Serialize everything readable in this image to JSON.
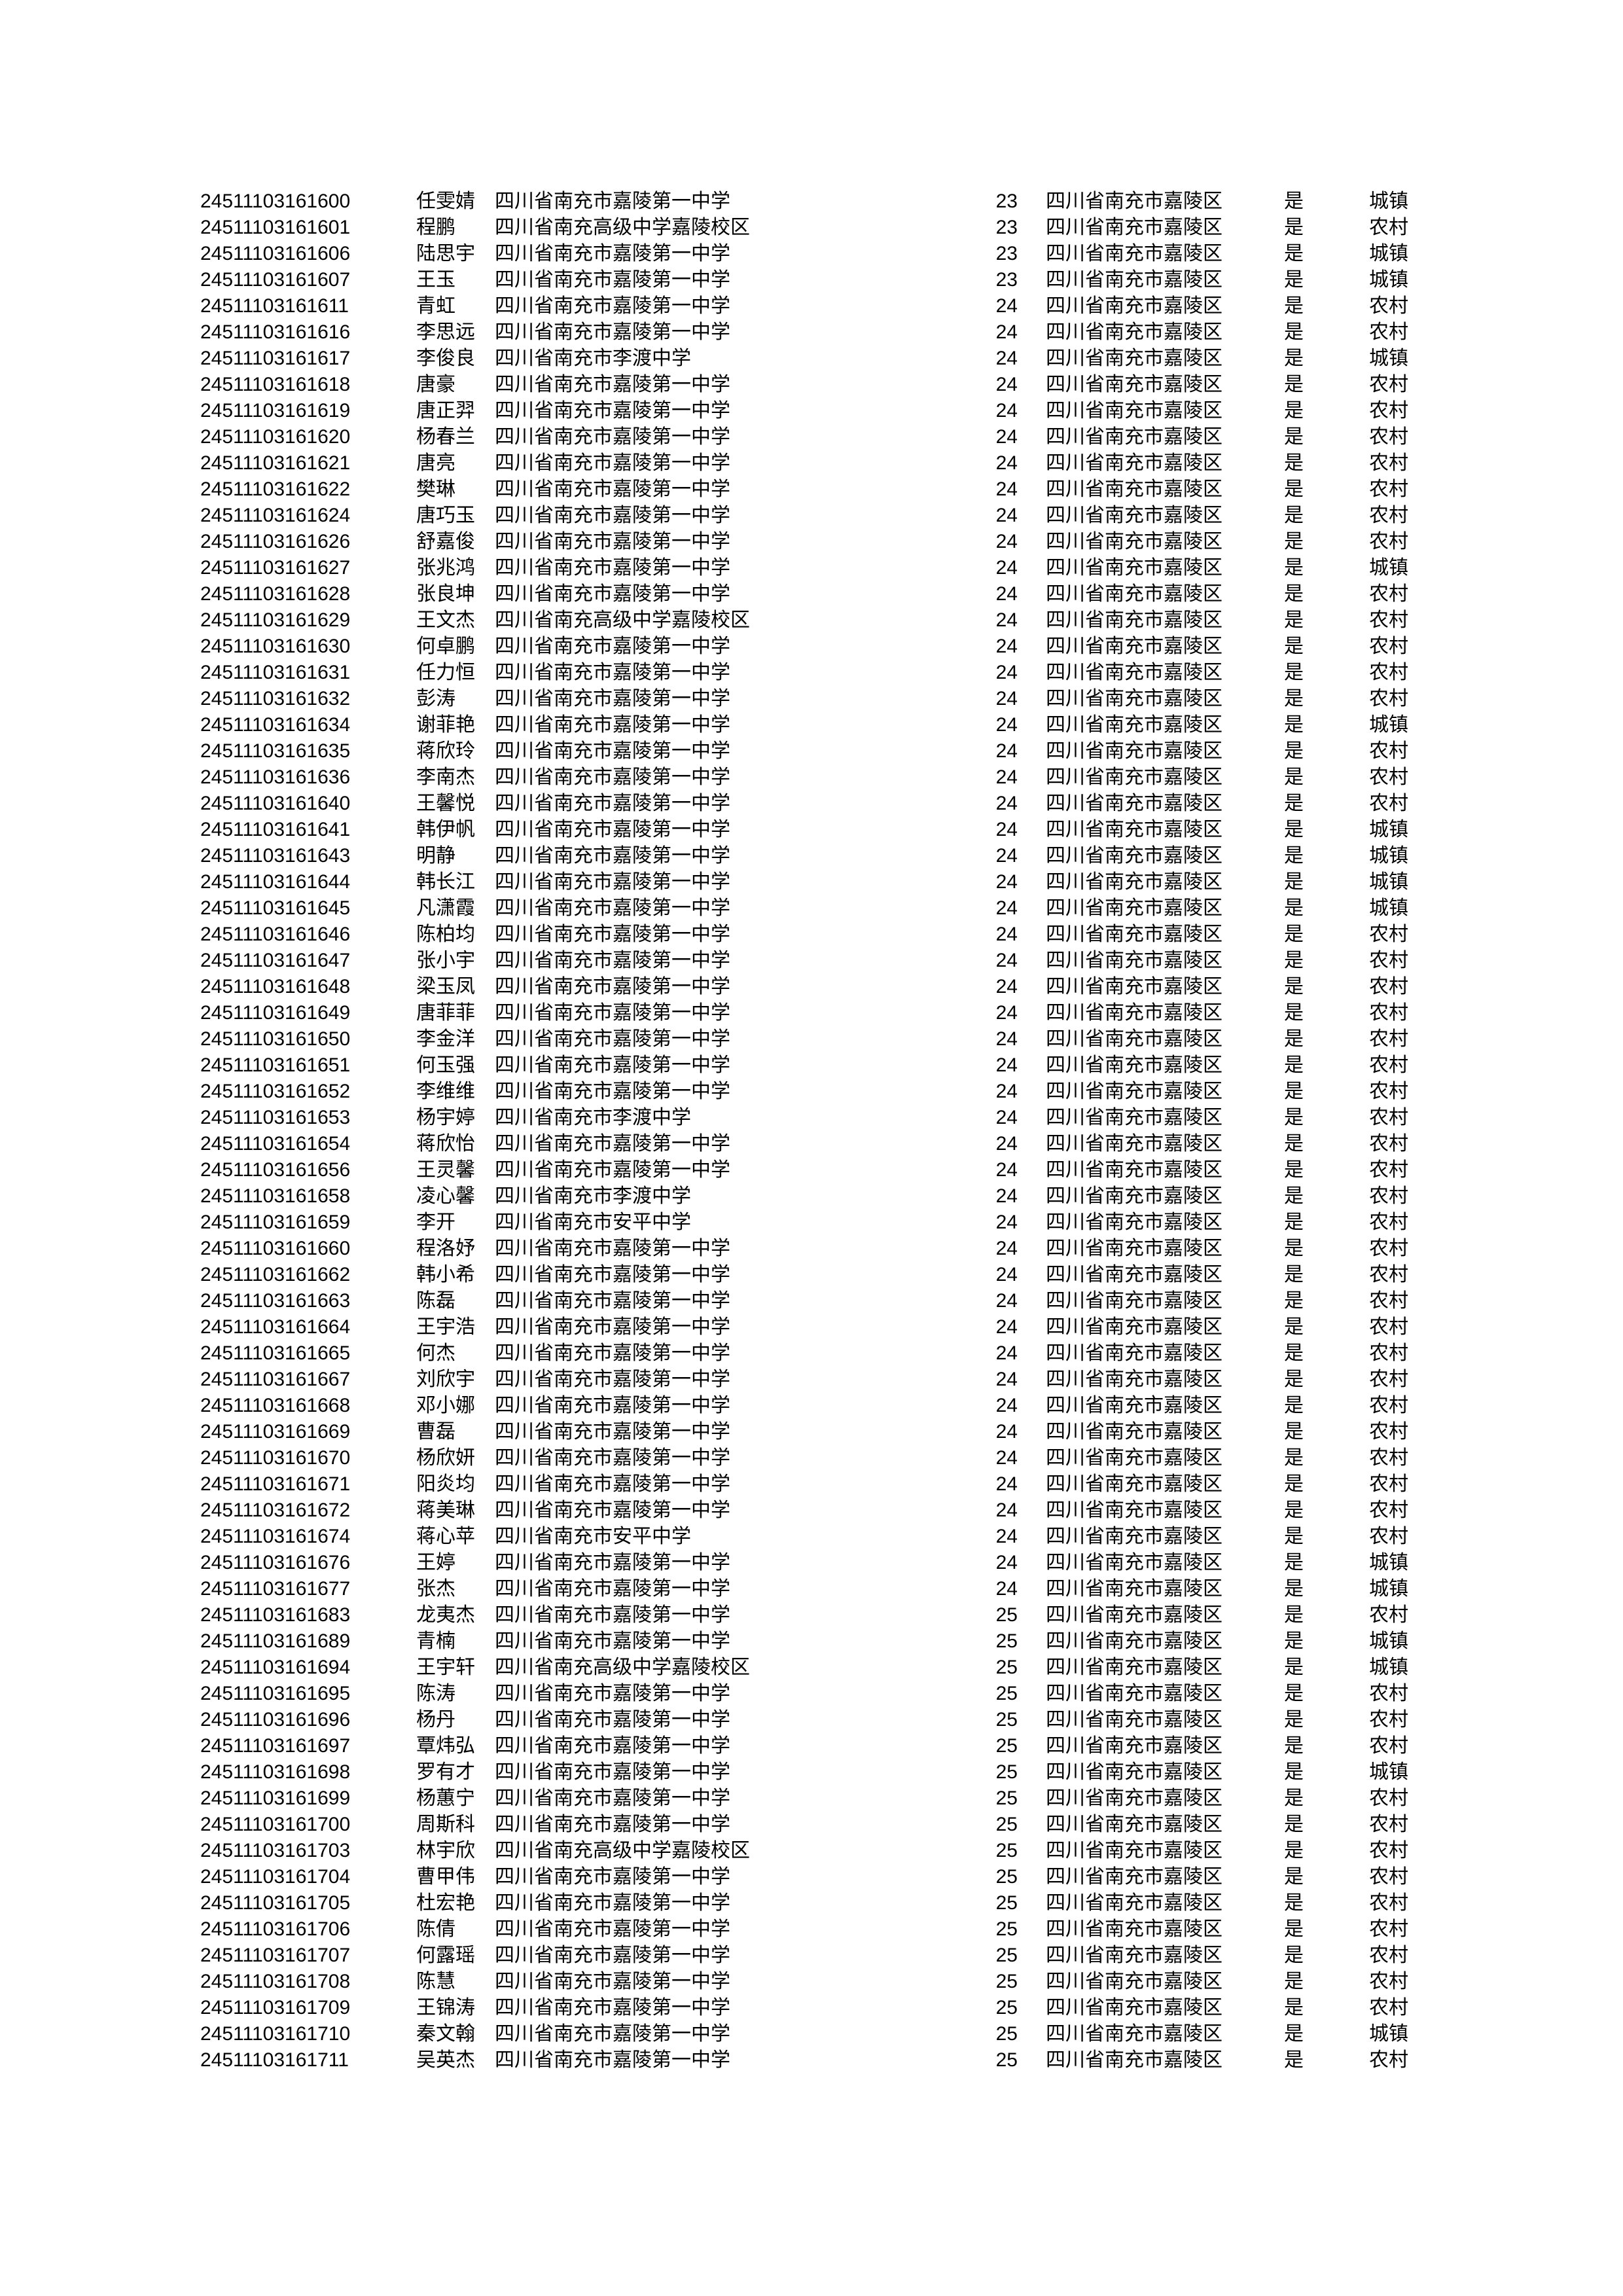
{
  "table": {
    "column_keys": [
      "id",
      "name",
      "school",
      "num",
      "district",
      "flag",
      "residence"
    ],
    "cell_names": [
      "candidate-id",
      "student-name",
      "school-name",
      "number-value",
      "district-name",
      "yes-flag",
      "residence-type"
    ],
    "rows": [
      [
        "24511103161600",
        "任雯婧",
        "四川省南充市嘉陵第一中学",
        "23",
        "四川省南充市嘉陵区",
        "是",
        "城镇"
      ],
      [
        "24511103161601",
        "程鹏",
        "四川省南充高级中学嘉陵校区",
        "23",
        "四川省南充市嘉陵区",
        "是",
        "农村"
      ],
      [
        "24511103161606",
        "陆思宇",
        "四川省南充市嘉陵第一中学",
        "23",
        "四川省南充市嘉陵区",
        "是",
        "城镇"
      ],
      [
        "24511103161607",
        "王玉",
        "四川省南充市嘉陵第一中学",
        "23",
        "四川省南充市嘉陵区",
        "是",
        "城镇"
      ],
      [
        "24511103161611",
        "青虹",
        "四川省南充市嘉陵第一中学",
        "24",
        "四川省南充市嘉陵区",
        "是",
        "农村"
      ],
      [
        "24511103161616",
        "李思远",
        "四川省南充市嘉陵第一中学",
        "24",
        "四川省南充市嘉陵区",
        "是",
        "农村"
      ],
      [
        "24511103161617",
        "李俊良",
        "四川省南充市李渡中学",
        "24",
        "四川省南充市嘉陵区",
        "是",
        "城镇"
      ],
      [
        "24511103161618",
        "唐豪",
        "四川省南充市嘉陵第一中学",
        "24",
        "四川省南充市嘉陵区",
        "是",
        "农村"
      ],
      [
        "24511103161619",
        "唐正羿",
        "四川省南充市嘉陵第一中学",
        "24",
        "四川省南充市嘉陵区",
        "是",
        "农村"
      ],
      [
        "24511103161620",
        "杨春兰",
        "四川省南充市嘉陵第一中学",
        "24",
        "四川省南充市嘉陵区",
        "是",
        "农村"
      ],
      [
        "24511103161621",
        "唐亮",
        "四川省南充市嘉陵第一中学",
        "24",
        "四川省南充市嘉陵区",
        "是",
        "农村"
      ],
      [
        "24511103161622",
        "樊琳",
        "四川省南充市嘉陵第一中学",
        "24",
        "四川省南充市嘉陵区",
        "是",
        "农村"
      ],
      [
        "24511103161624",
        "唐巧玉",
        "四川省南充市嘉陵第一中学",
        "24",
        "四川省南充市嘉陵区",
        "是",
        "农村"
      ],
      [
        "24511103161626",
        "舒嘉俊",
        "四川省南充市嘉陵第一中学",
        "24",
        "四川省南充市嘉陵区",
        "是",
        "农村"
      ],
      [
        "24511103161627",
        "张兆鸿",
        "四川省南充市嘉陵第一中学",
        "24",
        "四川省南充市嘉陵区",
        "是",
        "城镇"
      ],
      [
        "24511103161628",
        "张良坤",
        "四川省南充市嘉陵第一中学",
        "24",
        "四川省南充市嘉陵区",
        "是",
        "农村"
      ],
      [
        "24511103161629",
        "王文杰",
        "四川省南充高级中学嘉陵校区",
        "24",
        "四川省南充市嘉陵区",
        "是",
        "农村"
      ],
      [
        "24511103161630",
        "何卓鹏",
        "四川省南充市嘉陵第一中学",
        "24",
        "四川省南充市嘉陵区",
        "是",
        "农村"
      ],
      [
        "24511103161631",
        "任力恒",
        "四川省南充市嘉陵第一中学",
        "24",
        "四川省南充市嘉陵区",
        "是",
        "农村"
      ],
      [
        "24511103161632",
        "彭涛",
        "四川省南充市嘉陵第一中学",
        "24",
        "四川省南充市嘉陵区",
        "是",
        "农村"
      ],
      [
        "24511103161634",
        "谢菲艳",
        "四川省南充市嘉陵第一中学",
        "24",
        "四川省南充市嘉陵区",
        "是",
        "城镇"
      ],
      [
        "24511103161635",
        "蒋欣玲",
        "四川省南充市嘉陵第一中学",
        "24",
        "四川省南充市嘉陵区",
        "是",
        "农村"
      ],
      [
        "24511103161636",
        "李南杰",
        "四川省南充市嘉陵第一中学",
        "24",
        "四川省南充市嘉陵区",
        "是",
        "农村"
      ],
      [
        "24511103161640",
        "王馨悦",
        "四川省南充市嘉陵第一中学",
        "24",
        "四川省南充市嘉陵区",
        "是",
        "农村"
      ],
      [
        "24511103161641",
        "韩伊帆",
        "四川省南充市嘉陵第一中学",
        "24",
        "四川省南充市嘉陵区",
        "是",
        "城镇"
      ],
      [
        "24511103161643",
        "明静",
        "四川省南充市嘉陵第一中学",
        "24",
        "四川省南充市嘉陵区",
        "是",
        "城镇"
      ],
      [
        "24511103161644",
        "韩长江",
        "四川省南充市嘉陵第一中学",
        "24",
        "四川省南充市嘉陵区",
        "是",
        "城镇"
      ],
      [
        "24511103161645",
        "凡潇霞",
        "四川省南充市嘉陵第一中学",
        "24",
        "四川省南充市嘉陵区",
        "是",
        "城镇"
      ],
      [
        "24511103161646",
        "陈柏均",
        "四川省南充市嘉陵第一中学",
        "24",
        "四川省南充市嘉陵区",
        "是",
        "农村"
      ],
      [
        "24511103161647",
        "张小宇",
        "四川省南充市嘉陵第一中学",
        "24",
        "四川省南充市嘉陵区",
        "是",
        "农村"
      ],
      [
        "24511103161648",
        "梁玉凤",
        "四川省南充市嘉陵第一中学",
        "24",
        "四川省南充市嘉陵区",
        "是",
        "农村"
      ],
      [
        "24511103161649",
        "唐菲菲",
        "四川省南充市嘉陵第一中学",
        "24",
        "四川省南充市嘉陵区",
        "是",
        "农村"
      ],
      [
        "24511103161650",
        "李金洋",
        "四川省南充市嘉陵第一中学",
        "24",
        "四川省南充市嘉陵区",
        "是",
        "农村"
      ],
      [
        "24511103161651",
        "何玉强",
        "四川省南充市嘉陵第一中学",
        "24",
        "四川省南充市嘉陵区",
        "是",
        "农村"
      ],
      [
        "24511103161652",
        "李维维",
        "四川省南充市嘉陵第一中学",
        "24",
        "四川省南充市嘉陵区",
        "是",
        "农村"
      ],
      [
        "24511103161653",
        "杨宇婷",
        "四川省南充市李渡中学",
        "24",
        "四川省南充市嘉陵区",
        "是",
        "农村"
      ],
      [
        "24511103161654",
        "蒋欣怡",
        "四川省南充市嘉陵第一中学",
        "24",
        "四川省南充市嘉陵区",
        "是",
        "农村"
      ],
      [
        "24511103161656",
        "王灵馨",
        "四川省南充市嘉陵第一中学",
        "24",
        "四川省南充市嘉陵区",
        "是",
        "农村"
      ],
      [
        "24511103161658",
        "凌心馨",
        "四川省南充市李渡中学",
        "24",
        "四川省南充市嘉陵区",
        "是",
        "农村"
      ],
      [
        "24511103161659",
        "李开",
        "四川省南充市安平中学",
        "24",
        "四川省南充市嘉陵区",
        "是",
        "农村"
      ],
      [
        "24511103161660",
        "程洛妤",
        "四川省南充市嘉陵第一中学",
        "24",
        "四川省南充市嘉陵区",
        "是",
        "农村"
      ],
      [
        "24511103161662",
        "韩小希",
        "四川省南充市嘉陵第一中学",
        "24",
        "四川省南充市嘉陵区",
        "是",
        "农村"
      ],
      [
        "24511103161663",
        "陈磊",
        "四川省南充市嘉陵第一中学",
        "24",
        "四川省南充市嘉陵区",
        "是",
        "农村"
      ],
      [
        "24511103161664",
        "王宇浩",
        "四川省南充市嘉陵第一中学",
        "24",
        "四川省南充市嘉陵区",
        "是",
        "农村"
      ],
      [
        "24511103161665",
        "何杰",
        "四川省南充市嘉陵第一中学",
        "24",
        "四川省南充市嘉陵区",
        "是",
        "农村"
      ],
      [
        "24511103161667",
        "刘欣宇",
        "四川省南充市嘉陵第一中学",
        "24",
        "四川省南充市嘉陵区",
        "是",
        "农村"
      ],
      [
        "24511103161668",
        "邓小娜",
        "四川省南充市嘉陵第一中学",
        "24",
        "四川省南充市嘉陵区",
        "是",
        "农村"
      ],
      [
        "24511103161669",
        "曹磊",
        "四川省南充市嘉陵第一中学",
        "24",
        "四川省南充市嘉陵区",
        "是",
        "农村"
      ],
      [
        "24511103161670",
        "杨欣妍",
        "四川省南充市嘉陵第一中学",
        "24",
        "四川省南充市嘉陵区",
        "是",
        "农村"
      ],
      [
        "24511103161671",
        "阳炎均",
        "四川省南充市嘉陵第一中学",
        "24",
        "四川省南充市嘉陵区",
        "是",
        "农村"
      ],
      [
        "24511103161672",
        "蒋美琳",
        "四川省南充市嘉陵第一中学",
        "24",
        "四川省南充市嘉陵区",
        "是",
        "农村"
      ],
      [
        "24511103161674",
        "蒋心苹",
        "四川省南充市安平中学",
        "24",
        "四川省南充市嘉陵区",
        "是",
        "农村"
      ],
      [
        "24511103161676",
        "王婷",
        "四川省南充市嘉陵第一中学",
        "24",
        "四川省南充市嘉陵区",
        "是",
        "城镇"
      ],
      [
        "24511103161677",
        "张杰",
        "四川省南充市嘉陵第一中学",
        "24",
        "四川省南充市嘉陵区",
        "是",
        "城镇"
      ],
      [
        "24511103161683",
        "龙夷杰",
        "四川省南充市嘉陵第一中学",
        "25",
        "四川省南充市嘉陵区",
        "是",
        "农村"
      ],
      [
        "24511103161689",
        "青楠",
        "四川省南充市嘉陵第一中学",
        "25",
        "四川省南充市嘉陵区",
        "是",
        "城镇"
      ],
      [
        "24511103161694",
        "王宇轩",
        "四川省南充高级中学嘉陵校区",
        "25",
        "四川省南充市嘉陵区",
        "是",
        "城镇"
      ],
      [
        "24511103161695",
        "陈涛",
        "四川省南充市嘉陵第一中学",
        "25",
        "四川省南充市嘉陵区",
        "是",
        "农村"
      ],
      [
        "24511103161696",
        "杨丹",
        "四川省南充市嘉陵第一中学",
        "25",
        "四川省南充市嘉陵区",
        "是",
        "农村"
      ],
      [
        "24511103161697",
        "覃炜弘",
        "四川省南充市嘉陵第一中学",
        "25",
        "四川省南充市嘉陵区",
        "是",
        "农村"
      ],
      [
        "24511103161698",
        "罗有才",
        "四川省南充市嘉陵第一中学",
        "25",
        "四川省南充市嘉陵区",
        "是",
        "城镇"
      ],
      [
        "24511103161699",
        "杨蕙宁",
        "四川省南充市嘉陵第一中学",
        "25",
        "四川省南充市嘉陵区",
        "是",
        "农村"
      ],
      [
        "24511103161700",
        "周斯科",
        "四川省南充市嘉陵第一中学",
        "25",
        "四川省南充市嘉陵区",
        "是",
        "农村"
      ],
      [
        "24511103161703",
        "林宇欣",
        "四川省南充高级中学嘉陵校区",
        "25",
        "四川省南充市嘉陵区",
        "是",
        "农村"
      ],
      [
        "24511103161704",
        "曹甲伟",
        "四川省南充市嘉陵第一中学",
        "25",
        "四川省南充市嘉陵区",
        "是",
        "农村"
      ],
      [
        "24511103161705",
        "杜宏艳",
        "四川省南充市嘉陵第一中学",
        "25",
        "四川省南充市嘉陵区",
        "是",
        "农村"
      ],
      [
        "24511103161706",
        "陈倩",
        "四川省南充市嘉陵第一中学",
        "25",
        "四川省南充市嘉陵区",
        "是",
        "农村"
      ],
      [
        "24511103161707",
        "何露瑶",
        "四川省南充市嘉陵第一中学",
        "25",
        "四川省南充市嘉陵区",
        "是",
        "农村"
      ],
      [
        "24511103161708",
        "陈慧",
        "四川省南充市嘉陵第一中学",
        "25",
        "四川省南充市嘉陵区",
        "是",
        "农村"
      ],
      [
        "24511103161709",
        "王锦涛",
        "四川省南充市嘉陵第一中学",
        "25",
        "四川省南充市嘉陵区",
        "是",
        "农村"
      ],
      [
        "24511103161710",
        "秦文翰",
        "四川省南充市嘉陵第一中学",
        "25",
        "四川省南充市嘉陵区",
        "是",
        "城镇"
      ],
      [
        "24511103161711",
        "吴英杰",
        "四川省南充市嘉陵第一中学",
        "25",
        "四川省南充市嘉陵区",
        "是",
        "农村"
      ]
    ]
  }
}
